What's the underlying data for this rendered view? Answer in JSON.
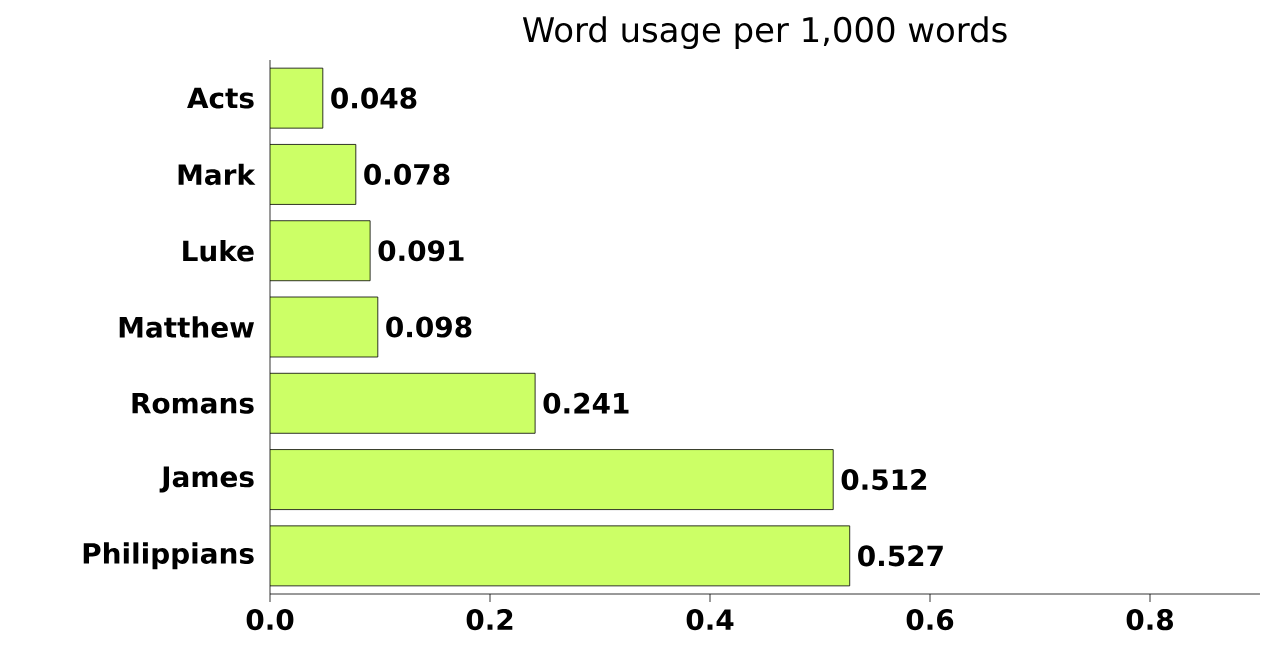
{
  "chart_data": {
    "type": "bar",
    "orientation": "horizontal",
    "title": "Word usage per 1,000 words",
    "categories": [
      "Acts",
      "Mark",
      "Luke",
      "Matthew",
      "Romans",
      "James",
      "Philippians"
    ],
    "values": [
      0.048,
      0.078,
      0.091,
      0.098,
      0.241,
      0.512,
      0.527
    ],
    "color": "#ccff66",
    "xlim": [
      0,
      0.9
    ],
    "xticks": [
      {
        "value": 0,
        "label": "0.0"
      },
      0.2,
      0.4,
      0.6,
      0.8
    ],
    "data_labels": true,
    "grid": false
  }
}
